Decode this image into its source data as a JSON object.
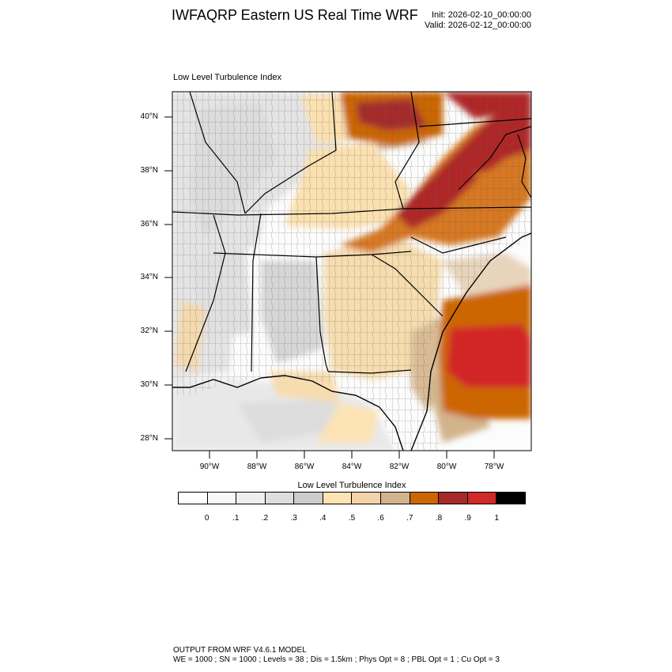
{
  "header": {
    "title": "IWFAQRP Eastern US Real Time WRF",
    "init": "Init: 2026-02-10_00:00:00",
    "valid": "Valid: 2026-02-12_00:00:00"
  },
  "map": {
    "subtitle": "Low Level Turbulence Index",
    "lat_labels": [
      "40°N",
      "38°N",
      "36°N",
      "34°N",
      "32°N",
      "30°N",
      "28°N"
    ],
    "lon_labels": [
      "90°W",
      "88°W",
      "86°W",
      "84°W",
      "82°W",
      "80°W",
      "78°W"
    ]
  },
  "colorbar": {
    "title": "Low Level Turbulence Index",
    "colors": [
      "#ffffff",
      "#f8f8f8",
      "#eeeeee",
      "#dddddd",
      "#cccccc",
      "#ffe3b3",
      "#f3d3a8",
      "#d1b38c",
      "#cc6600",
      "#a52a2a",
      "#d22828",
      "#000000"
    ],
    "ticks": [
      "0",
      ".1",
      ".2",
      ".3",
      ".4",
      ".5",
      ".6",
      ".7",
      ".8",
      ".9",
      "1"
    ]
  },
  "footer": {
    "line1": "OUTPUT FROM WRF V4.6.1 MODEL",
    "line2": "WE = 1000 ; SN = 1000 ; Levels = 38 ; Dis = 1.5km ; Phys Opt = 8 ; PBL Opt = 1 ; Cu Opt = 3"
  }
}
